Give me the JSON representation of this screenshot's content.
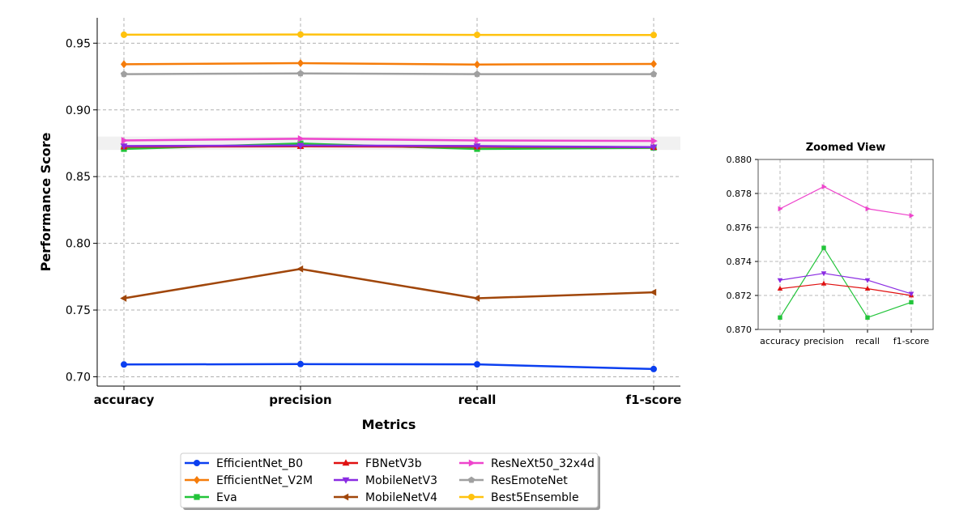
{
  "chart_data": [
    {
      "type": "line",
      "title": "",
      "xlabel": "Metrics",
      "ylabel": "Performance Score",
      "categories": [
        "accuracy",
        "precision",
        "recall",
        "f1-score"
      ],
      "ylim": [
        0.693,
        0.969
      ],
      "yticks": [
        "0.70",
        "0.75",
        "0.80",
        "0.85",
        "0.90",
        "0.95"
      ],
      "grid": true,
      "highlight_band": [
        0.87,
        0.88
      ],
      "legend_placement": "bottom-center",
      "series": [
        {
          "name": "EfficientNet_B0",
          "color": "#0b3ff0",
          "marker": "circle",
          "values": [
            0.7092,
            0.7095,
            0.7093,
            0.7058
          ]
        },
        {
          "name": "EfficientNet_V2M",
          "color": "#f57c0a",
          "marker": "diamond",
          "values": [
            0.9342,
            0.935,
            0.934,
            0.9344
          ]
        },
        {
          "name": "Eva",
          "color": "#22c43a",
          "marker": "square",
          "values": [
            0.8707,
            0.8748,
            0.8707,
            0.8716
          ]
        },
        {
          "name": "FBNetV3b",
          "color": "#e01010",
          "marker": "triangle-up",
          "values": [
            0.8724,
            0.8727,
            0.8724,
            0.872
          ]
        },
        {
          "name": "MobileNetV3",
          "color": "#8a2be2",
          "marker": "triangle-down",
          "values": [
            0.8729,
            0.8733,
            0.8729,
            0.8721
          ]
        },
        {
          "name": "MobileNetV4",
          "color": "#a0460a",
          "marker": "triangle-left",
          "values": [
            0.7588,
            0.7808,
            0.7588,
            0.7633
          ]
        },
        {
          "name": "ResNeXt50_32x4d",
          "color": "#ee44cc",
          "marker": "triangle-right",
          "values": [
            0.8771,
            0.8784,
            0.8771,
            0.8767
          ]
        },
        {
          "name": "ResEmoteNet",
          "color": "#a0a0a0",
          "marker": "pentagon",
          "values": [
            0.9268,
            0.9273,
            0.9268,
            0.9268
          ]
        },
        {
          "name": "Best5Ensemble",
          "color": "#ffc20e",
          "marker": "circle",
          "values": [
            0.9563,
            0.9565,
            0.9562,
            0.9561
          ]
        }
      ]
    },
    {
      "type": "line",
      "title": "Zoomed View",
      "xlabel": "",
      "ylabel": "",
      "categories": [
        "accuracy",
        "precision",
        "recall",
        "f1-score"
      ],
      "ylim": [
        0.87,
        0.88
      ],
      "yticks": [
        "0.870",
        "0.872",
        "0.874",
        "0.876",
        "0.878",
        "0.880"
      ],
      "grid": true
    }
  ]
}
